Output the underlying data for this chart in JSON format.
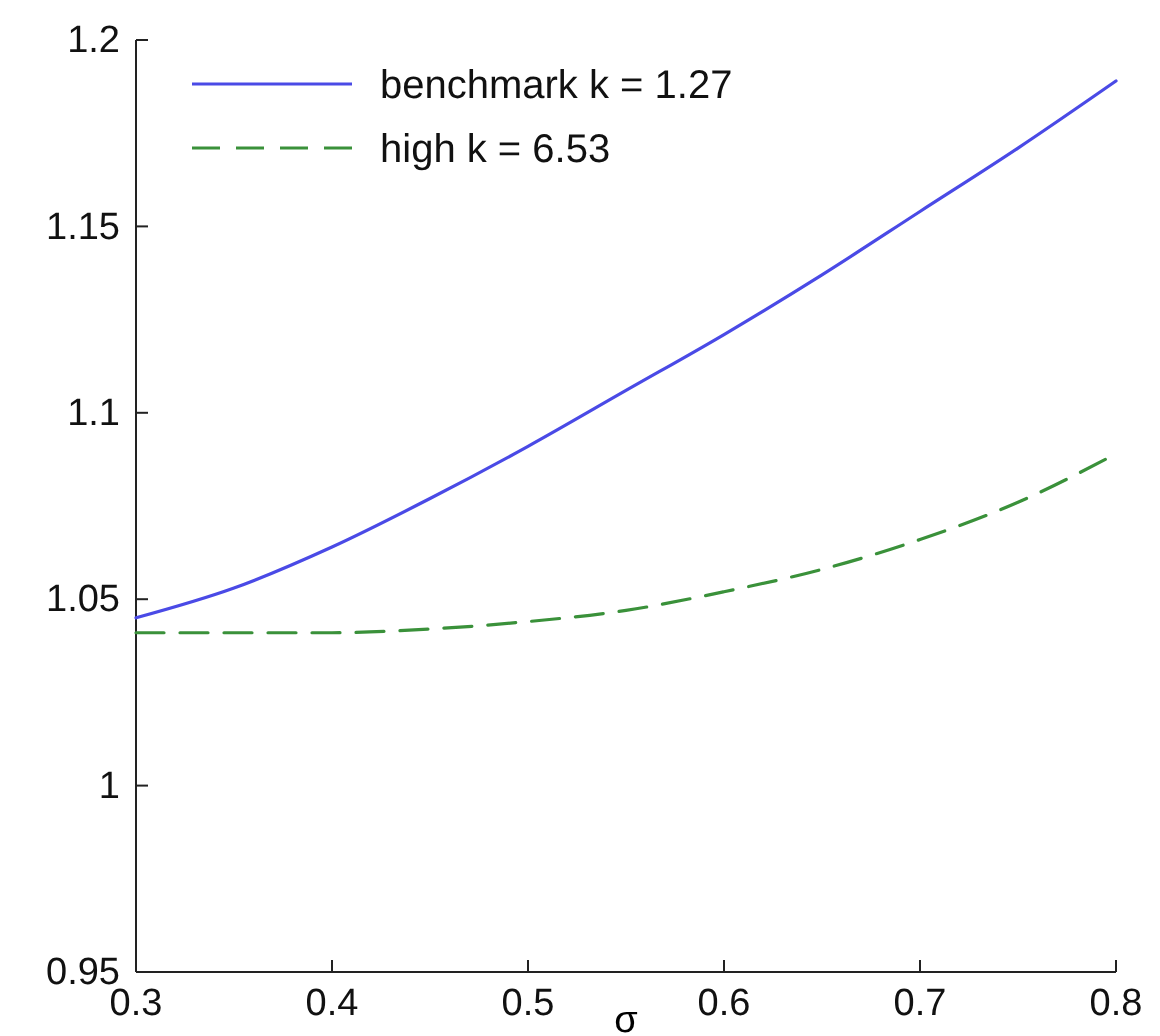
{
  "chart_data": {
    "type": "line",
    "xlabel": "σ",
    "xlim": [
      0.3,
      0.8
    ],
    "xticks": [
      0.3,
      0.4,
      0.5,
      0.6,
      0.7,
      0.8
    ],
    "ylim": [
      0.95,
      1.2
    ],
    "yticks": [
      0.95,
      1,
      1.05,
      1.1,
      1.15,
      1.2
    ],
    "legend": "top left",
    "grid": false,
    "series": [
      {
        "name": "benchmark k = 1.27",
        "color": "#4a4ae6",
        "line_style": "solid",
        "x": [
          0.3,
          0.35,
          0.4,
          0.45,
          0.5,
          0.55,
          0.6,
          0.65,
          0.7,
          0.75,
          0.8
        ],
        "values": [
          1.045,
          1.053,
          1.064,
          1.077,
          1.091,
          1.106,
          1.121,
          1.137,
          1.154,
          1.171,
          1.189
        ]
      },
      {
        "name": "high k = 6.53",
        "color": "#3a913a",
        "line_style": "dashed",
        "x": [
          0.3,
          0.35,
          0.4,
          0.45,
          0.5,
          0.55,
          0.6,
          0.65,
          0.7,
          0.75,
          0.8
        ],
        "values": [
          1.041,
          1.041,
          1.041,
          1.042,
          1.044,
          1.047,
          1.052,
          1.058,
          1.066,
          1.076,
          1.089
        ]
      }
    ]
  }
}
